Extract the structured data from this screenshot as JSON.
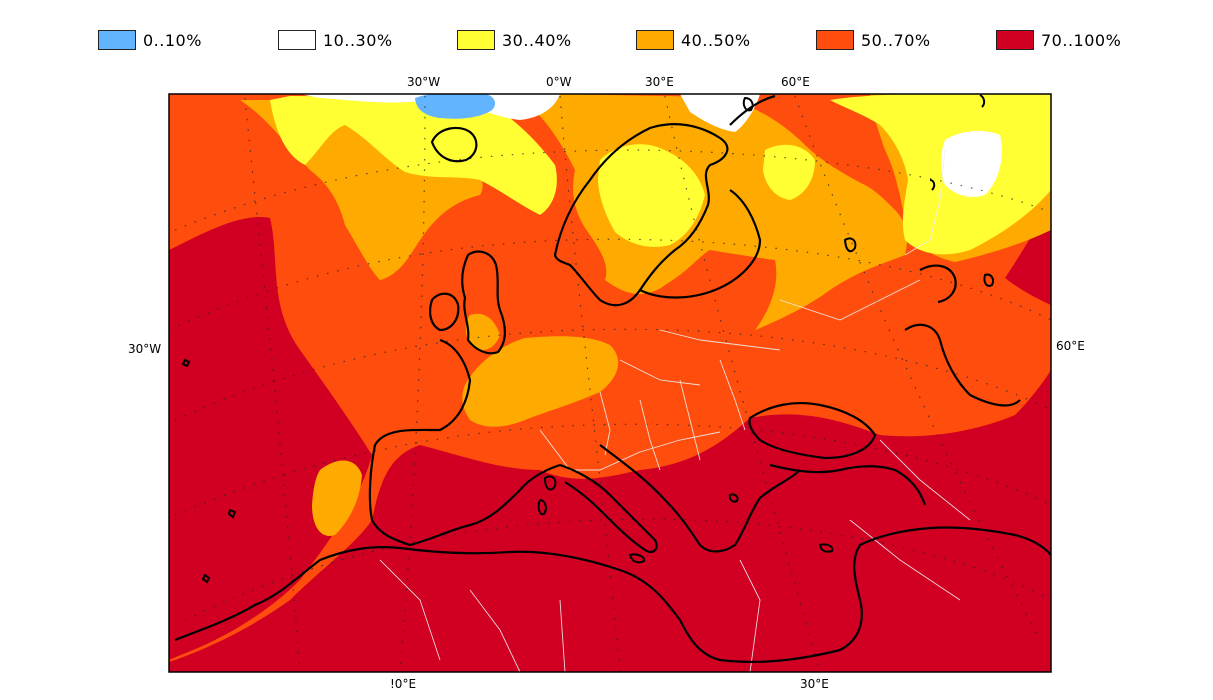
{
  "legend": {
    "items": [
      {
        "label": "0..10%",
        "color": "#63b4ff"
      },
      {
        "label": "10..30%",
        "color": "#ffffff"
      },
      {
        "label": "30..40%",
        "color": "#ffff33"
      },
      {
        "label": "40..50%",
        "color": "#ffaa00"
      },
      {
        "label": "50..70%",
        "color": "#ff4d0d"
      },
      {
        "label": "70..100%",
        "color": "#d10022"
      }
    ]
  },
  "axes": {
    "top_ticks": [
      "30°W",
      "0°W",
      "30°E",
      "60°E"
    ],
    "left_tick": "30°W",
    "right_tick": "60°E",
    "bottom_ticks": [
      "!0°E",
      "30°E"
    ]
  },
  "map": {
    "projection": "conic",
    "coastline_color": "#000000",
    "border_color": "#e6e6e6",
    "graticule": "dotted"
  }
}
